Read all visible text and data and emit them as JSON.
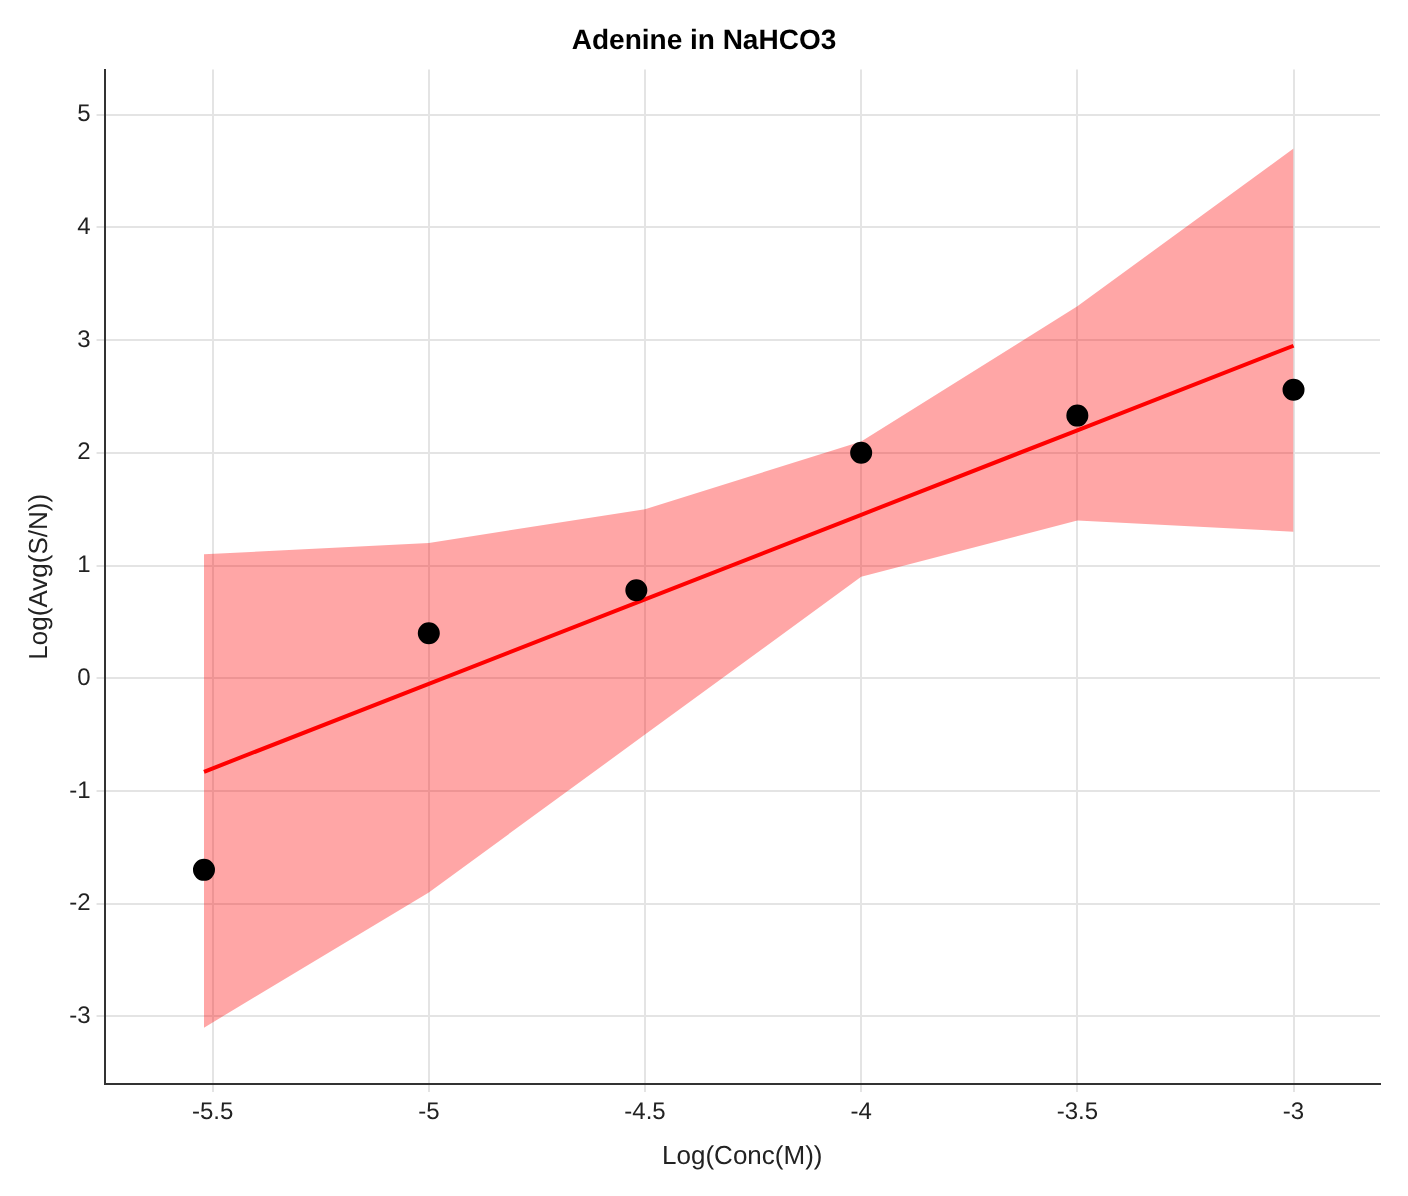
{
  "chart_data": {
    "type": "scatter",
    "title": "Adenine in NaHCO3",
    "xlabel": "Log(Conc(M))",
    "ylabel": "Log(Avg(S/N))",
    "series": [
      {
        "type": "line",
        "color": "#ff0000",
        "marker": "none",
        "x": [
          -5.52,
          -5,
          -4.5,
          -4,
          -3.5,
          -3
        ],
        "values": [
          -0.83,
          -0.05,
          0.7,
          1.45,
          2.2,
          2.95
        ],
        "lower": [
          -3.1,
          -1.9,
          -0.5,
          0.9,
          1.4,
          1.3
        ],
        "upper": [
          1.1,
          1.2,
          1.5,
          2.1,
          3.3,
          4.7
        ]
      },
      {
        "type": "scatter",
        "color": "#000000",
        "marker": "circle",
        "x": [
          -5.52,
          -5,
          -4.52,
          -4,
          -3.5,
          -3
        ],
        "values": [
          -1.7,
          0.4,
          0.78,
          2.0,
          2.33,
          2.56
        ]
      }
    ],
    "xlim": [
      -5.75,
      -2.8
    ],
    "ylim": [
      -3.6,
      5.4
    ],
    "xticks": [
      -5.5,
      -5,
      -4.5,
      -4,
      -3.5,
      -3
    ],
    "yticks": [
      -3,
      -2,
      -1,
      0,
      1,
      2,
      3,
      4,
      5
    ],
    "grid": true,
    "legend": false
  }
}
